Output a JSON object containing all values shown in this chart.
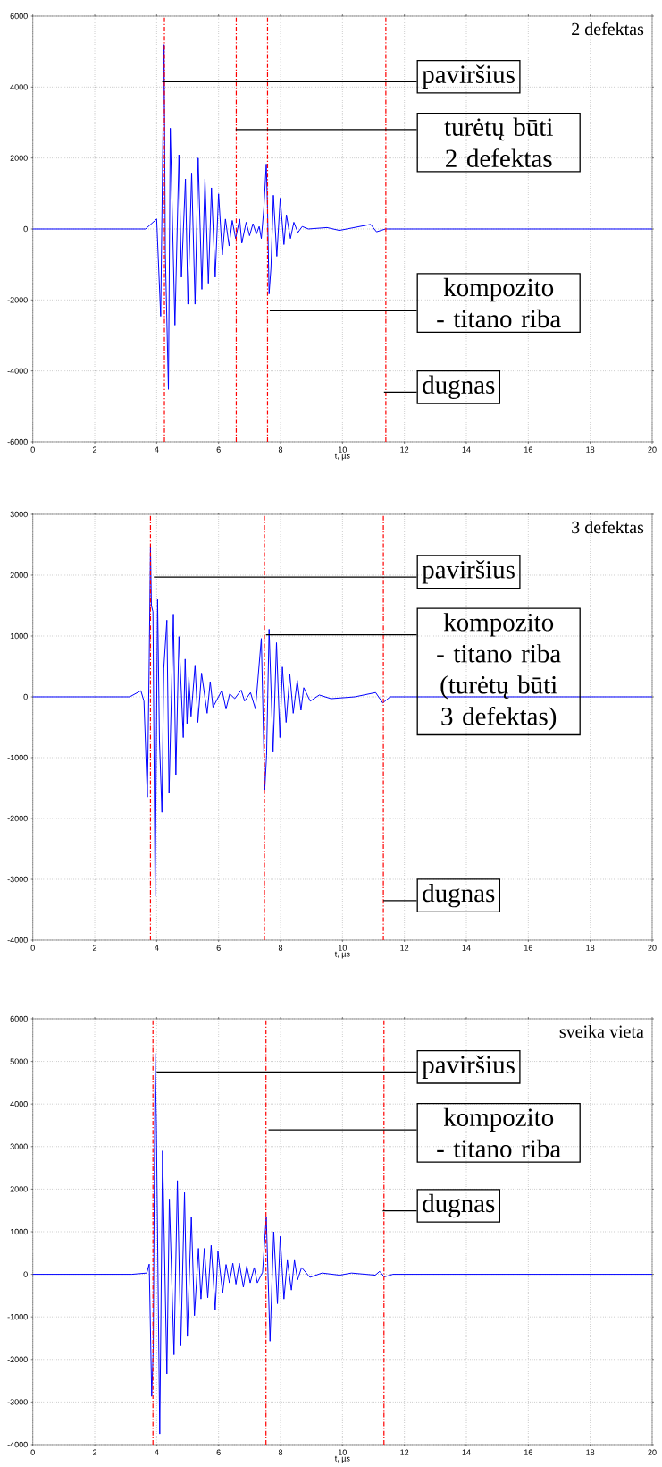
{
  "chart_data": [
    {
      "type": "line",
      "title": "2 defektas",
      "xlabel": "t, µs",
      "color": "#0000ff",
      "grid": true,
      "xlim": [
        0,
        20
      ],
      "ylim": [
        -6000,
        6000
      ],
      "xticks": [
        0,
        2,
        4,
        6,
        8,
        10,
        12,
        14,
        16,
        18,
        20
      ],
      "yticks": [
        -6000,
        -4000,
        -2000,
        0,
        2000,
        4000,
        6000
      ],
      "x": [
        0,
        3.64,
        4.0,
        4.13,
        4.21,
        4.24,
        4.28,
        4.38,
        4.44,
        4.59,
        4.72,
        4.8,
        4.93,
        5.01,
        5.13,
        5.24,
        5.34,
        5.46,
        5.56,
        5.67,
        5.77,
        5.89,
        6.0,
        6.12,
        6.22,
        6.34,
        6.44,
        6.55,
        6.68,
        6.75,
        6.89,
        7.0,
        7.11,
        7.22,
        7.31,
        7.38,
        7.46,
        7.54,
        7.58,
        7.63,
        7.69,
        7.77,
        7.88,
        7.99,
        8.11,
        8.19,
        8.32,
        8.43,
        8.56,
        8.7,
        8.9,
        9.5,
        9.9,
        10.91,
        11.1,
        11.39,
        20
      ],
      "values": [
        0,
        0,
        280,
        -2460,
        3140,
        5200,
        -690,
        -4520,
        2840,
        -2710,
        2090,
        -1360,
        1410,
        -2120,
        1580,
        -2120,
        2000,
        -1700,
        1410,
        -1530,
        1160,
        -1360,
        990,
        -730,
        280,
        -480,
        240,
        -270,
        280,
        -400,
        190,
        -190,
        150,
        -140,
        70,
        -270,
        570,
        1830,
        570,
        -1830,
        -1110,
        950,
        -770,
        870,
        -440,
        400,
        -270,
        190,
        -100,
        70,
        0,
        40,
        -40,
        130,
        -80,
        0,
        0
      ],
      "ref_lines": [
        {
          "axis": "x",
          "value": 4.25,
          "color": "#ff0000",
          "line_style": "dashed"
        },
        {
          "axis": "x",
          "value": 6.57,
          "color": "#ff0000",
          "line_style": "dashed"
        },
        {
          "axis": "x",
          "value": 7.58,
          "color": "#ff0000",
          "line_style": "dashed"
        },
        {
          "axis": "x",
          "value": 11.4,
          "color": "#ff0000",
          "line_style": "dashed"
        }
      ],
      "annotations": [
        {
          "text": "paviršius",
          "x": 4.18,
          "y": 4150
        },
        {
          "text": "turėtų būti 2 defektas",
          "x": 6.55,
          "y": 2800
        },
        {
          "text": "kompozito - titano riba",
          "x": 7.65,
          "y": -2300
        },
        {
          "text": "dugnas",
          "x": 11.34,
          "y": -4600
        }
      ]
    },
    {
      "type": "line",
      "title": "3 defektas",
      "xlabel": "t, µs",
      "color": "#0000ff",
      "grid": true,
      "xlim": [
        0,
        20
      ],
      "ylim": [
        -4000,
        3000
      ],
      "xticks": [
        0,
        2,
        4,
        6,
        8,
        10,
        12,
        14,
        16,
        18,
        20
      ],
      "yticks": [
        -4000,
        -3000,
        -2000,
        -1000,
        0,
        1000,
        2000,
        3000
      ],
      "x": [
        0,
        3.13,
        3.49,
        3.59,
        3.7,
        3.76,
        3.8,
        3.83,
        3.88,
        3.95,
        4.03,
        4.09,
        4.17,
        4.23,
        4.33,
        4.4,
        4.54,
        4.62,
        4.72,
        4.86,
        4.92,
        4.98,
        5.04,
        5.11,
        5.24,
        5.33,
        5.45,
        5.63,
        5.73,
        5.82,
        6.11,
        6.24,
        6.36,
        6.52,
        6.73,
        6.84,
        7.03,
        7.19,
        7.38,
        7.49,
        7.55,
        7.63,
        7.76,
        7.87,
        7.98,
        8.06,
        8.18,
        8.3,
        8.41,
        8.54,
        8.66,
        8.75,
        8.96,
        9.25,
        9.63,
        10.4,
        11.07,
        11.3,
        11.54,
        20
      ],
      "values": [
        0,
        0,
        100,
        -70,
        -1650,
        620,
        2470,
        1500,
        1400,
        -3280,
        1600,
        -720,
        -1900,
        470,
        1260,
        -1580,
        1360,
        -1280,
        990,
        -670,
        620,
        -440,
        320,
        -320,
        520,
        -420,
        390,
        -270,
        250,
        -170,
        110,
        -200,
        50,
        -30,
        110,
        -70,
        70,
        -200,
        960,
        -1530,
        -960,
        1110,
        -910,
        890,
        -670,
        490,
        -420,
        370,
        -270,
        270,
        -220,
        150,
        -70,
        30,
        -30,
        0,
        70,
        -100,
        0,
        0
      ],
      "ref_lines": [
        {
          "axis": "x",
          "value": 3.8,
          "color": "#ff0000",
          "line_style": "dashed"
        },
        {
          "axis": "x",
          "value": 7.48,
          "color": "#ff0000",
          "line_style": "dashed"
        },
        {
          "axis": "x",
          "value": 11.32,
          "color": "#ff0000",
          "line_style": "dashed"
        }
      ],
      "annotations": [
        {
          "text": "paviršius",
          "x": 3.91,
          "y": 1970
        },
        {
          "text": "kompozito - titano riba (turėtų būti 3 defektas)",
          "x": 7.53,
          "y": 1020
        },
        {
          "text": "dugnas",
          "x": 11.32,
          "y": -3350
        }
      ]
    },
    {
      "type": "line",
      "title": "sveika vieta",
      "xlabel": "t, µs",
      "color": "#0000ff",
      "grid": true,
      "xlim": [
        0,
        20
      ],
      "ylim": [
        -4000,
        6000
      ],
      "xticks": [
        0,
        2,
        4,
        6,
        8,
        10,
        12,
        14,
        16,
        18,
        20
      ],
      "yticks": [
        -4000,
        -3000,
        -2000,
        -1000,
        0,
        1000,
        2000,
        3000,
        4000,
        5000,
        6000
      ],
      "x": [
        0,
        3.2,
        3.68,
        3.76,
        3.84,
        3.89,
        3.95,
        3.99,
        4.1,
        4.19,
        4.33,
        4.41,
        4.56,
        4.67,
        4.78,
        4.9,
        4.99,
        5.12,
        5.22,
        5.35,
        5.43,
        5.54,
        5.65,
        5.76,
        5.89,
        5.98,
        6.13,
        6.24,
        6.35,
        6.46,
        6.56,
        6.67,
        6.8,
        6.91,
        7.02,
        7.15,
        7.25,
        7.42,
        7.54,
        7.66,
        7.78,
        7.9,
        7.99,
        8.11,
        8.22,
        8.35,
        8.45,
        8.55,
        8.68,
        8.95,
        9.34,
        9.91,
        10.29,
        11.06,
        11.2,
        11.35,
        11.63,
        20
      ],
      "values": [
        0,
        0,
        30,
        240,
        -2870,
        -1750,
        5190,
        3530,
        -3750,
        2900,
        -2340,
        1770,
        -1890,
        2200,
        -1680,
        1920,
        -1460,
        1350,
        -970,
        610,
        -580,
        610,
        -550,
        680,
        -830,
        540,
        -440,
        230,
        -200,
        260,
        -230,
        260,
        -300,
        190,
        -200,
        160,
        -200,
        50,
        1350,
        -1570,
        1000,
        -690,
        890,
        -580,
        330,
        -370,
        330,
        -130,
        160,
        -70,
        30,
        -20,
        30,
        -20,
        70,
        -60,
        0,
        0
      ],
      "ref_lines": [
        {
          "axis": "x",
          "value": 3.88,
          "color": "#ff0000",
          "line_style": "dashed"
        },
        {
          "axis": "x",
          "value": 7.53,
          "color": "#ff0000",
          "line_style": "dashed"
        },
        {
          "axis": "x",
          "value": 11.34,
          "color": "#ff0000",
          "line_style": "dashed"
        }
      ],
      "annotations": [
        {
          "text": "paviršius",
          "x": 4.0,
          "y": 4750
        },
        {
          "text": "kompozito - titano riba",
          "x": 7.61,
          "y": 3390
        },
        {
          "text": "dugnas",
          "x": 11.3,
          "y": 1490
        }
      ]
    }
  ]
}
